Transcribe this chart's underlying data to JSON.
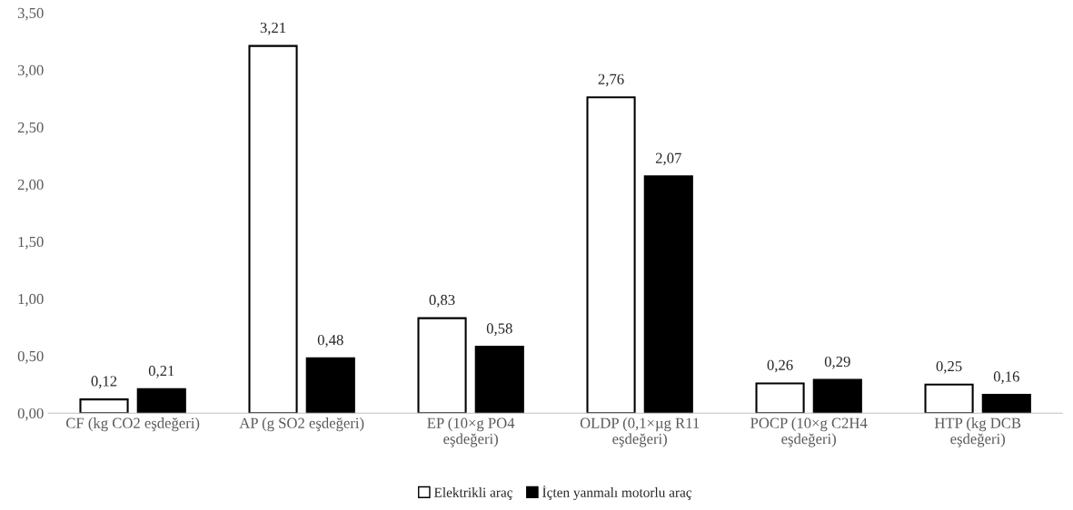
{
  "chart_data": {
    "type": "bar",
    "categories": [
      "CF (kg CO2 eşdeğeri)",
      "AP (g SO2 eşdeğeri)",
      "EP (10×g PO4\neşdeğeri)",
      "OLDP (0,1×µg R11\neşdeğeri)",
      "POCP (10×g C2H4\neşdeğeri)",
      "HTP (kg DCB\neşdeğeri)"
    ],
    "series": [
      {
        "name": "Elektrikli araç",
        "color": "#ffffff",
        "values": [
          0.12,
          3.21,
          0.83,
          2.76,
          0.26,
          0.25
        ],
        "value_labels": [
          "0,12",
          "3,21",
          "0,83",
          "2,76",
          "0,26",
          "0,25"
        ]
      },
      {
        "name": "İçten yanmalı motorlu araç",
        "color": "#000000",
        "values": [
          0.21,
          0.48,
          0.58,
          2.07,
          0.29,
          0.16
        ],
        "value_labels": [
          "0,21",
          "0,48",
          "0,58",
          "2,07",
          "0,29",
          "0,16"
        ]
      }
    ],
    "ylim": [
      0,
      3.5
    ],
    "yticks": [
      {
        "value": 0,
        "label": "0,00"
      },
      {
        "value": 0.5,
        "label": "0,50"
      },
      {
        "value": 1,
        "label": "1,00"
      },
      {
        "value": 1.5,
        "label": "1,50"
      },
      {
        "value": 2,
        "label": "2,00"
      },
      {
        "value": 2.5,
        "label": "2,50"
      },
      {
        "value": 3,
        "label": "3,00"
      },
      {
        "value": 3.5,
        "label": "3,50"
      }
    ],
    "grid": false,
    "legend": "bottom"
  }
}
